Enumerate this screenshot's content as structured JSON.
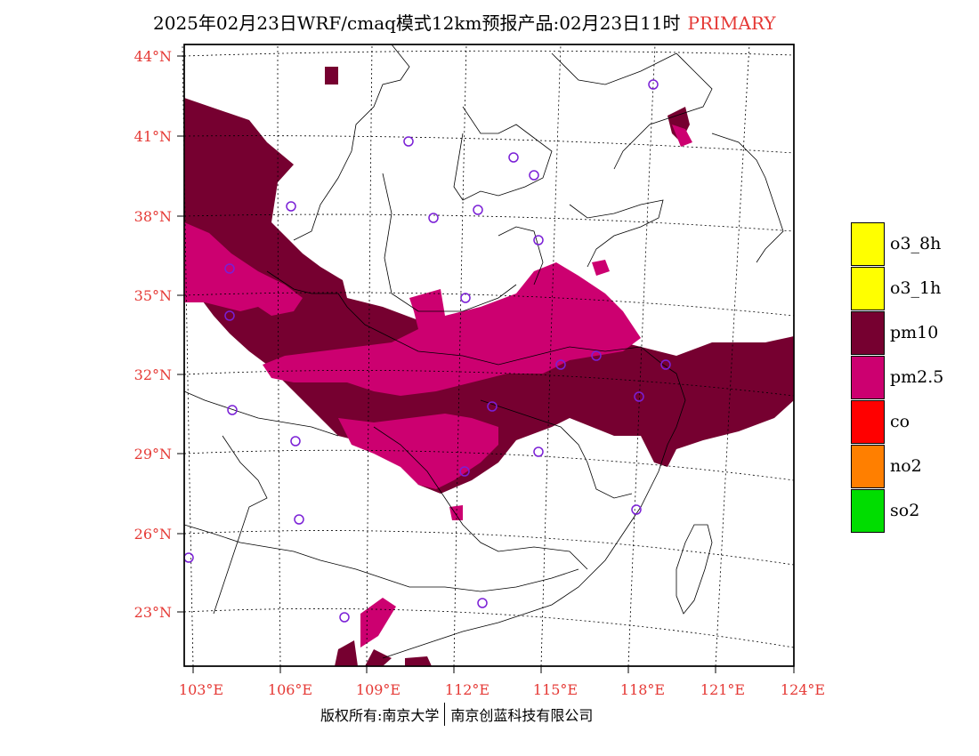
{
  "title": {
    "main": "2025年02月23日WRF/cmaq模式12km预报产品:02月23日11时",
    "tag": "PRIMARY"
  },
  "axes": {
    "lat_labels": [
      "44°N",
      "41°N",
      "38°N",
      "35°N",
      "32°N",
      "29°N",
      "26°N",
      "23°N"
    ],
    "lon_labels": [
      "103°E",
      "106°E",
      "109°E",
      "112°E",
      "115°E",
      "118°E",
      "121°E",
      "124°E"
    ]
  },
  "legend": [
    {
      "label": "o3_8h",
      "color": "#ffff00"
    },
    {
      "label": "o3_1h",
      "color": "#ffff00"
    },
    {
      "label": "pm10",
      "color": "#760030"
    },
    {
      "label": "pm2.5",
      "color": "#cc0070"
    },
    {
      "label": "co",
      "color": "#ff0000"
    },
    {
      "label": "no2",
      "color": "#ff7f00"
    },
    {
      "label": "so2",
      "color": "#00dd00"
    }
  ],
  "footer": {
    "left": "版权所有:南京大学",
    "right": "南京创蓝科技有限公司"
  }
}
